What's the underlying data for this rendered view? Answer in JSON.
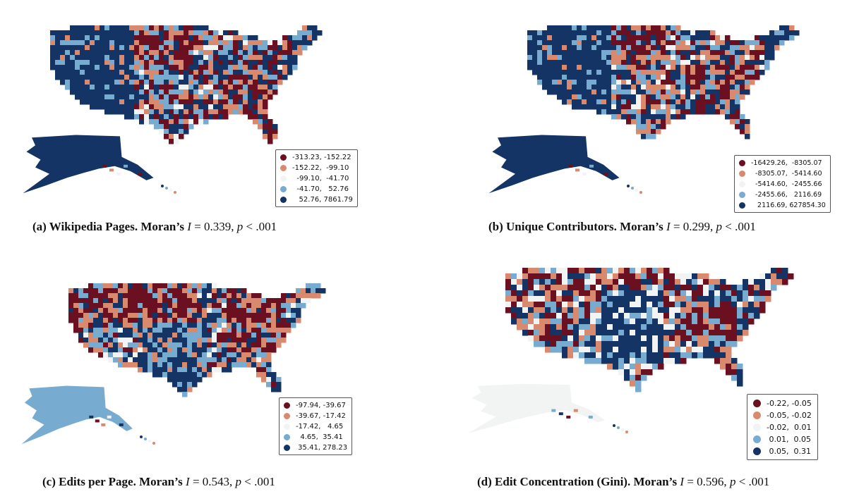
{
  "palette": {
    "dark_red": "#6b1020",
    "light_red": "#d98a6e",
    "neutral": "#f2f4f4",
    "light_blue": "#78abd0",
    "dark_blue": "#133464"
  },
  "panels": [
    {
      "id": "a",
      "legend": [
        "-313.23, -152.22",
        "-152.22,  -99.10",
        "  -99.10,  -41.70",
        "  -41.70,   52.76",
        "   52.76, 7861.79"
      ],
      "caption": {
        "label": "(a) Wikipedia Pages. Moran’s ",
        "stat_var": "I",
        "stat_eq": " = 0.339, ",
        "p_var": "p",
        "p_rest": " < .001"
      },
      "map_scheme": "west-blue"
    },
    {
      "id": "b",
      "legend": [
        "-16429.26,  -8305.07",
        "  -8305.07,  -5414.60",
        "  -5414.60,  -2455.66",
        "  -2455.66,   2116.69",
        "   2116.69, 627854.30"
      ],
      "caption": {
        "label": "(b) Unique Contributors. Moran’s ",
        "stat_var": "I",
        "stat_eq": " = 0.299, ",
        "p_var": "p",
        "p_rest": " < .001"
      },
      "map_scheme": "west-blue"
    },
    {
      "id": "c",
      "legend": [
        "-97.94, -39.67",
        "-39.67, -17.42",
        "-17.42,   4.65",
        "  4.65,  35.41",
        " 35.41, 278.23"
      ],
      "caption": {
        "label": "(c) Edits per Page. Moran’s ",
        "stat_var": "I",
        "stat_eq": " = 0.543, ",
        "p_var": "p",
        "p_rest": " < .001"
      },
      "map_scheme": "north-red"
    },
    {
      "id": "d",
      "legend": [
        "-0.22, -0.05",
        "-0.05, -0.02",
        "-0.02,  0.01",
        " 0.01,  0.05",
        " 0.05,  0.31"
      ],
      "caption": {
        "label": "(d) Edit Concentration (Gini). Moran’s ",
        "stat_var": "I",
        "stat_eq": " = 0.596, ",
        "p_var": "p",
        "p_rest": " < .001"
      },
      "map_scheme": "mixed"
    }
  ]
}
